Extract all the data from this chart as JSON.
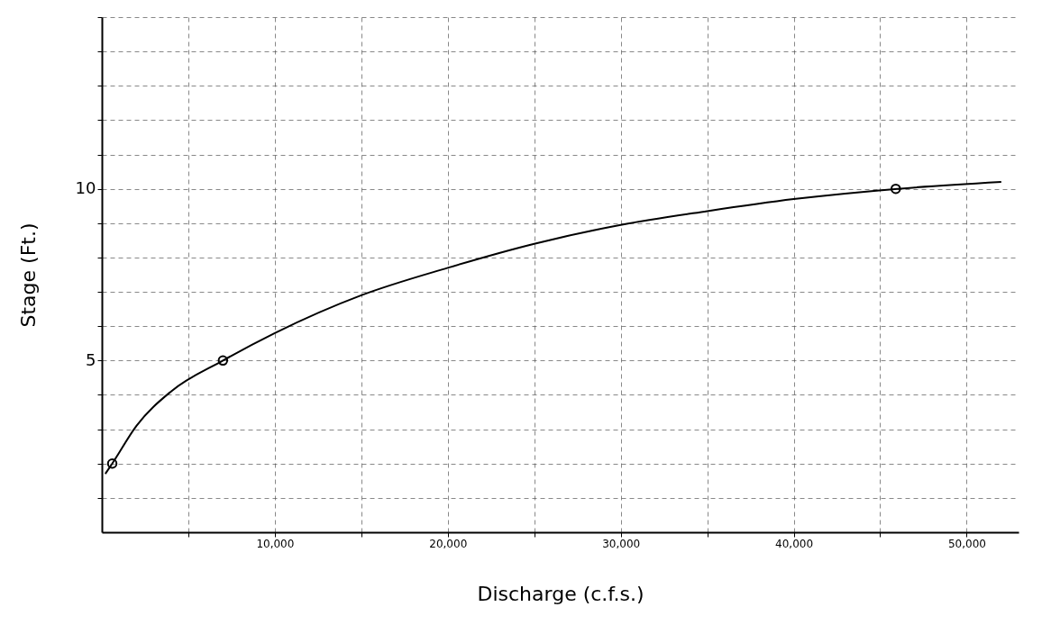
{
  "chart_data": {
    "type": "line",
    "xlabel": "Discharge (c.f.s.)",
    "ylabel": "Stage (Ft.)",
    "xlim": [
      0,
      53000
    ],
    "ylim": [
      0,
      15
    ],
    "xticks": [
      {
        "value": 5000,
        "label": null
      },
      {
        "value": 10000,
        "label": "10,000"
      },
      {
        "value": 15000,
        "label": null
      },
      {
        "value": 20000,
        "label": "20,000"
      },
      {
        "value": 25000,
        "label": null
      },
      {
        "value": 30000,
        "label": "30,000"
      },
      {
        "value": 35000,
        "label": null
      },
      {
        "value": 40000,
        "label": "40,000"
      },
      {
        "value": 45000,
        "label": null
      },
      {
        "value": 50000,
        "label": "50,000"
      }
    ],
    "yticks": [
      {
        "value": 1,
        "label": null
      },
      {
        "value": 2,
        "label": null
      },
      {
        "value": 3,
        "label": null
      },
      {
        "value": 4,
        "label": null
      },
      5,
      {
        "value": 6,
        "label": null
      },
      {
        "value": 7,
        "label": null
      },
      {
        "value": 8,
        "label": null
      },
      {
        "value": 9,
        "label": null
      },
      10,
      {
        "value": 11,
        "label": null
      },
      {
        "value": 12,
        "label": null
      },
      {
        "value": 13,
        "label": null
      },
      {
        "value": 14,
        "label": null
      },
      {
        "value": 15,
        "label": null
      }
    ],
    "grid": true,
    "series": [
      {
        "color": "#000000",
        "marker": "none",
        "line_style": "solid",
        "x": [
          200,
          600,
          2000,
          4000,
          7000,
          10000,
          15000,
          20000,
          25000,
          30000,
          35000,
          40000,
          46000,
          52000
        ],
        "values": [
          1.7,
          2,
          3.1,
          4.1,
          5,
          5.8,
          6.9,
          7.7,
          8.4,
          8.95,
          9.35,
          9.7,
          10,
          10.2
        ]
      },
      {
        "type": "scatter",
        "color": "#000000",
        "marker": "circle",
        "x": [
          600,
          7000,
          45900
        ],
        "values": [
          2,
          5,
          10
        ]
      }
    ]
  }
}
